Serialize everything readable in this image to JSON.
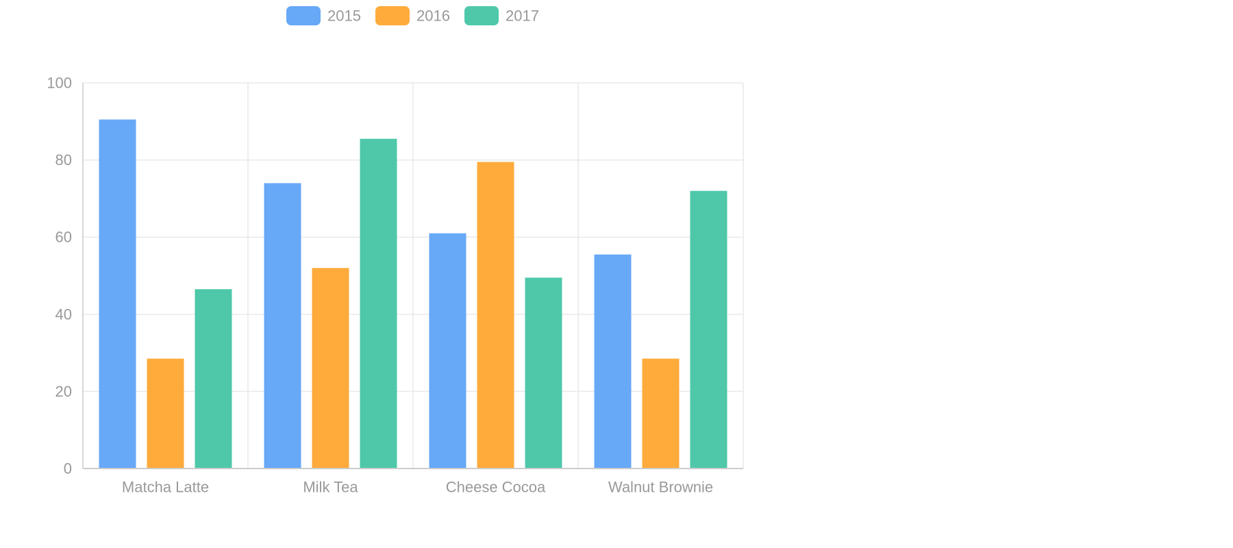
{
  "chart_data": {
    "type": "bar",
    "categories": [
      "Matcha Latte",
      "Milk Tea",
      "Cheese Cocoa",
      "Walnut Brownie"
    ],
    "series": [
      {
        "name": "2015",
        "color": "#67a8f7",
        "values": [
          90.5,
          74,
          61,
          55.5
        ]
      },
      {
        "name": "2016",
        "color": "#feab3b",
        "values": [
          28.5,
          52,
          79.5,
          28.5
        ]
      },
      {
        "name": "2017",
        "color": "#4ec8a9",
        "values": [
          46.5,
          85.5,
          49.5,
          72
        ]
      }
    ],
    "ylim": [
      0,
      100
    ],
    "yticks": [
      0,
      20,
      40,
      60,
      80,
      100
    ],
    "grid": true,
    "legend_position": "top-center",
    "title": "",
    "xlabel": "",
    "ylabel": ""
  }
}
